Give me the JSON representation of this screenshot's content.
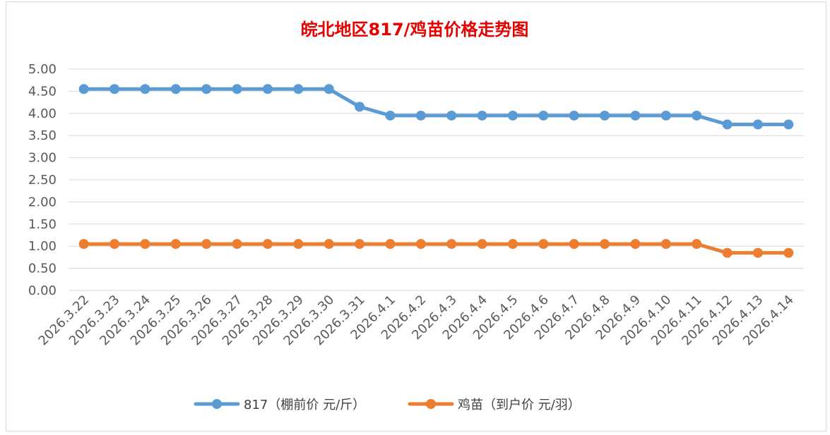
{
  "chart_data": {
    "type": "line",
    "title": "皖北地区817/鸡苗价格走势图",
    "categories": [
      "2026.3.22",
      "2026.3.23",
      "2026.3.24",
      "2026.3.25",
      "2026.3.26",
      "2026.3.27",
      "2026.3.28",
      "2026.3.29",
      "2026.3.30",
      "2026.3.31",
      "2026.4.1",
      "2026.4.2",
      "2026.4.3",
      "2026.4.4",
      "2026.4.5",
      "2026.4.6",
      "2026.4.7",
      "2026.4.8",
      "2026.4.9",
      "2026.4.10",
      "2026.4.11",
      "2026.4.12",
      "2026.4.13",
      "2026.4.14"
    ],
    "y_ticks": [
      "0.00",
      "0.50",
      "1.00",
      "1.50",
      "2.00",
      "2.50",
      "3.00",
      "3.50",
      "4.00",
      "4.50",
      "5.00"
    ],
    "ylim": [
      0,
      5
    ],
    "grid": true,
    "legend_position": "bottom",
    "series": [
      {
        "name": "817（棚前价 元/斤）",
        "color": "#5b9bd5",
        "values": [
          4.55,
          4.55,
          4.55,
          4.55,
          4.55,
          4.55,
          4.55,
          4.55,
          4.55,
          4.15,
          3.95,
          3.95,
          3.95,
          3.95,
          3.95,
          3.95,
          3.95,
          3.95,
          3.95,
          3.95,
          3.95,
          3.75,
          3.75,
          3.75
        ]
      },
      {
        "name": "鸡苗（到户价 元/羽）",
        "color": "#ed7d31",
        "values": [
          1.05,
          1.05,
          1.05,
          1.05,
          1.05,
          1.05,
          1.05,
          1.05,
          1.05,
          1.05,
          1.05,
          1.05,
          1.05,
          1.05,
          1.05,
          1.05,
          1.05,
          1.05,
          1.05,
          1.05,
          1.05,
          0.85,
          0.85,
          0.85
        ]
      }
    ]
  }
}
